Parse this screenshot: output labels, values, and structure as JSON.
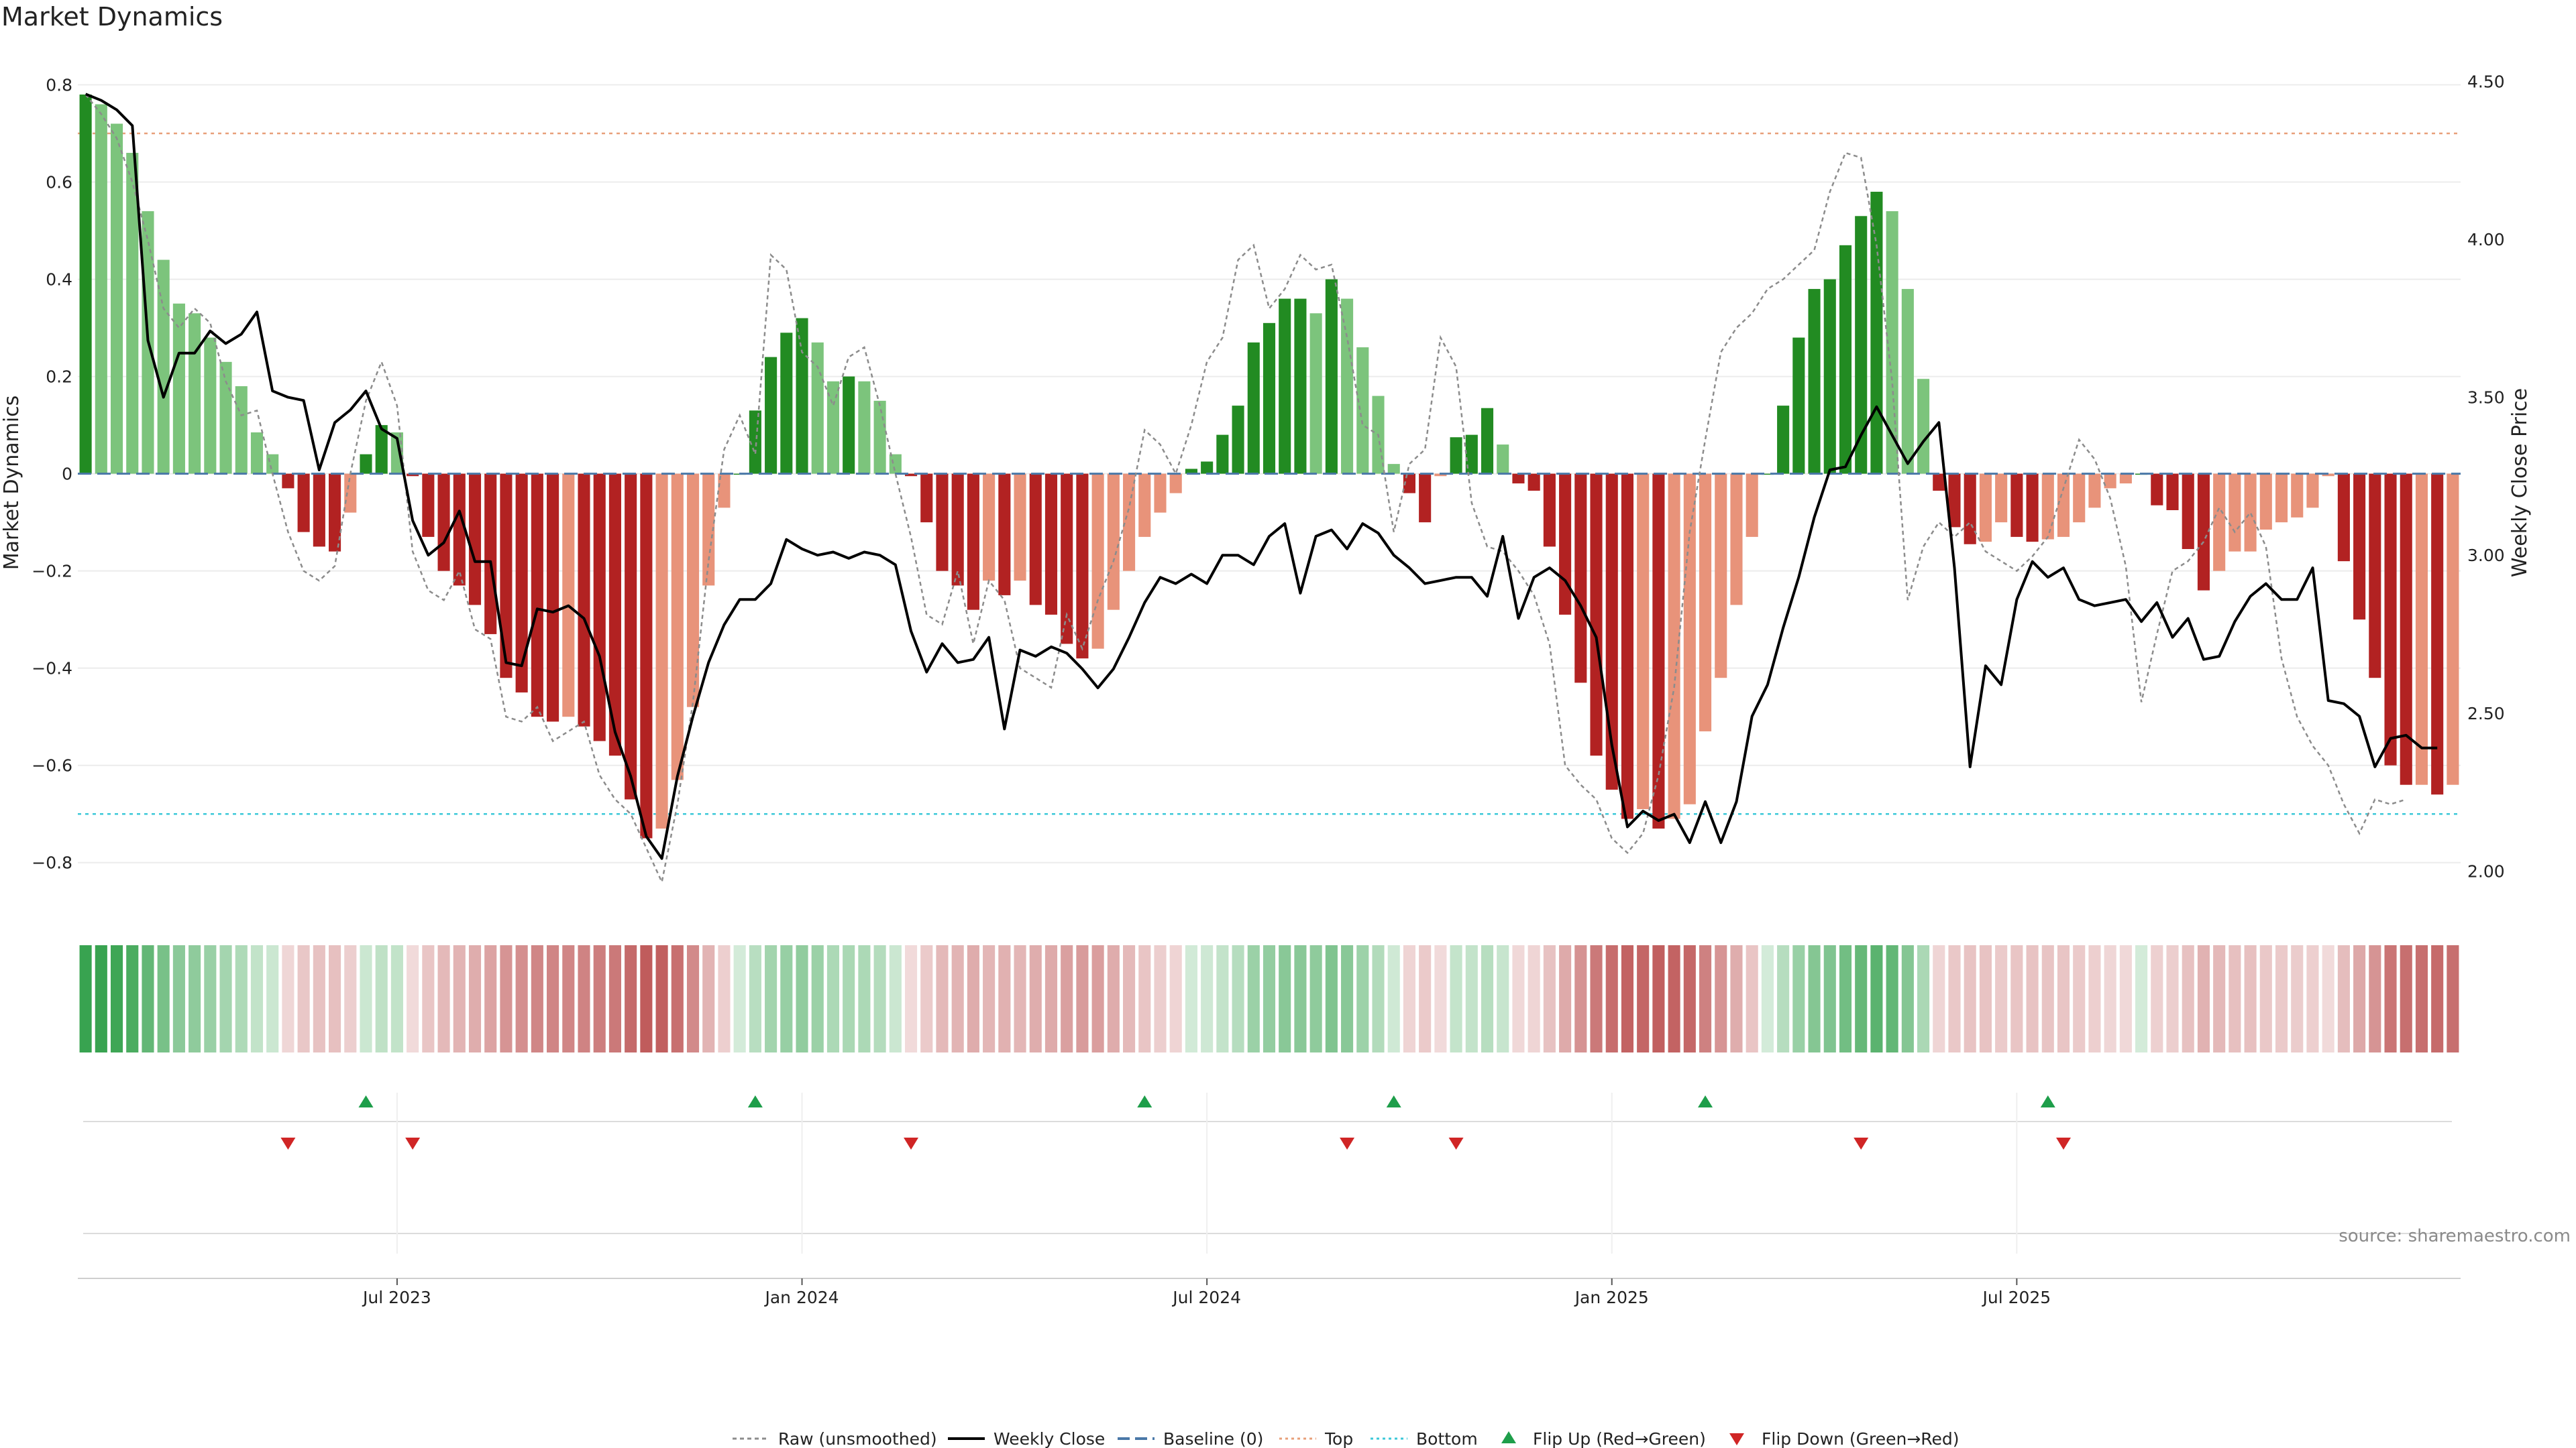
{
  "chart_data": {
    "type": "bar+line",
    "title": "Market Dynamics",
    "ylabel_left": "Market Dynamics",
    "ylabel_right": "Weekly Close Price",
    "ylim_left": [
      -0.85,
      0.82
    ],
    "yticks_left": [
      -0.8,
      -0.6,
      -0.4,
      -0.2,
      0,
      0.2,
      0.4,
      0.6,
      0.8
    ],
    "ytick_labels_left": [
      "−0.8",
      "−0.6",
      "−0.4",
      "−0.2",
      "0",
      "0.2",
      "0.4",
      "0.6",
      "0.8"
    ],
    "ylim_right": [
      1.95,
      4.52
    ],
    "yticks_right": [
      2.0,
      2.5,
      3.0,
      3.5,
      4.0,
      4.5
    ],
    "ytick_labels_right": [
      "2.00",
      "2.50",
      "3.00",
      "3.50",
      "4.00",
      "4.50"
    ],
    "xtick_labels": [
      "Jul 2023",
      "Jan 2024",
      "Jul 2024",
      "Jan 2025",
      "Jul 2025"
    ],
    "xtick_weeks": [
      20.5,
      46.5,
      72.5,
      98.5,
      124.5
    ],
    "top_level": 0.7,
    "bottom_level": -0.7,
    "baseline": 0,
    "momentum": [
      0.78,
      0.76,
      0.72,
      0.66,
      0.54,
      0.44,
      0.35,
      0.33,
      0.28,
      0.23,
      0.18,
      0.085,
      0.04,
      -0.03,
      -0.12,
      -0.15,
      -0.16,
      -0.08,
      0.04,
      0.1,
      0.085,
      -0.005,
      -0.13,
      -0.2,
      -0.23,
      -0.27,
      -0.33,
      -0.42,
      -0.45,
      -0.5,
      -0.51,
      -0.5,
      -0.52,
      -0.55,
      -0.58,
      -0.67,
      -0.75,
      -0.73,
      -0.63,
      -0.48,
      -0.23,
      -0.07,
      0.0,
      0.13,
      0.24,
      0.29,
      0.32,
      0.27,
      0.19,
      0.2,
      0.19,
      0.15,
      0.04,
      -0.005,
      -0.1,
      -0.2,
      -0.23,
      -0.28,
      -0.22,
      -0.25,
      -0.22,
      -0.27,
      -0.29,
      -0.35,
      -0.38,
      -0.36,
      -0.28,
      -0.2,
      -0.13,
      -0.08,
      -0.04,
      0.01,
      0.025,
      0.08,
      0.14,
      0.27,
      0.31,
      0.36,
      0.36,
      0.33,
      0.4,
      0.36,
      0.26,
      0.16,
      0.02,
      -0.04,
      -0.1,
      -0.005,
      0.075,
      0.08,
      0.135,
      0.06,
      -0.02,
      -0.035,
      -0.15,
      -0.29,
      -0.43,
      -0.58,
      -0.65,
      -0.71,
      -0.69,
      -0.73,
      -0.71,
      -0.68,
      -0.53,
      -0.42,
      -0.27,
      -0.13,
      0.0,
      0.14,
      0.28,
      0.38,
      0.4,
      0.47,
      0.53,
      0.58,
      0.54,
      0.38,
      0.195,
      -0.035,
      -0.11,
      -0.145,
      -0.14,
      -0.1,
      -0.13,
      -0.14,
      -0.135,
      -0.13,
      -0.1,
      -0.07,
      -0.03,
      -0.02,
      0.0,
      -0.065,
      -0.075,
      -0.155,
      -0.24,
      -0.2,
      -0.16,
      -0.16,
      -0.115,
      -0.1,
      -0.09,
      -0.07,
      -0.005,
      -0.18,
      -0.3,
      -0.42,
      -0.6,
      -0.64,
      -0.64,
      -0.66,
      -0.64
    ],
    "raw": [
      0.78,
      0.74,
      0.69,
      0.6,
      0.48,
      0.34,
      0.3,
      0.34,
      0.31,
      0.19,
      0.12,
      0.13,
      0.0,
      -0.12,
      -0.2,
      -0.22,
      -0.19,
      0.0,
      0.15,
      0.23,
      0.14,
      -0.16,
      -0.24,
      -0.26,
      -0.2,
      -0.32,
      -0.34,
      -0.5,
      -0.51,
      -0.48,
      -0.55,
      -0.53,
      -0.51,
      -0.62,
      -0.67,
      -0.7,
      -0.77,
      -0.84,
      -0.68,
      -0.47,
      -0.18,
      0.05,
      0.12,
      0.04,
      0.45,
      0.42,
      0.25,
      0.22,
      0.14,
      0.24,
      0.26,
      0.14,
      0.0,
      -0.13,
      -0.29,
      -0.31,
      -0.2,
      -0.35,
      -0.22,
      -0.26,
      -0.4,
      -0.42,
      -0.44,
      -0.29,
      -0.36,
      -0.26,
      -0.18,
      -0.07,
      0.09,
      0.06,
      0.0,
      0.1,
      0.23,
      0.28,
      0.44,
      0.47,
      0.34,
      0.38,
      0.45,
      0.42,
      0.43,
      0.28,
      0.1,
      0.08,
      -0.12,
      0.02,
      0.05,
      0.28,
      0.22,
      -0.06,
      -0.15,
      -0.16,
      -0.2,
      -0.25,
      -0.35,
      -0.6,
      -0.64,
      -0.67,
      -0.75,
      -0.78,
      -0.74,
      -0.62,
      -0.44,
      -0.12,
      0.07,
      0.25,
      0.3,
      0.33,
      0.38,
      0.4,
      0.43,
      0.46,
      0.58,
      0.66,
      0.65,
      0.47,
      0.19,
      -0.26,
      -0.15,
      -0.1,
      -0.13,
      -0.1,
      -0.16,
      -0.18,
      -0.2,
      -0.17,
      -0.13,
      -0.03,
      0.07,
      0.03,
      -0.05,
      -0.19,
      -0.47,
      -0.33,
      -0.2,
      -0.18,
      -0.14,
      -0.07,
      -0.12,
      -0.08,
      -0.15,
      -0.38,
      -0.5,
      -0.56,
      -0.6,
      -0.68,
      -0.74,
      -0.67,
      -0.68,
      -0.67
    ],
    "price": [
      4.46,
      4.44,
      4.41,
      4.36,
      3.68,
      3.5,
      3.64,
      3.64,
      3.71,
      3.67,
      3.7,
      3.77,
      3.52,
      3.5,
      3.49,
      3.27,
      3.42,
      3.46,
      3.52,
      3.4,
      3.37,
      3.11,
      3.0,
      3.04,
      3.14,
      2.98,
      2.98,
      2.66,
      2.65,
      2.83,
      2.82,
      2.84,
      2.8,
      2.68,
      2.44,
      2.3,
      2.11,
      2.04,
      2.3,
      2.49,
      2.66,
      2.78,
      2.86,
      2.86,
      2.91,
      3.05,
      3.02,
      3.0,
      3.01,
      2.99,
      3.01,
      3.0,
      2.97,
      2.76,
      2.63,
      2.72,
      2.66,
      2.67,
      2.74,
      2.45,
      2.7,
      2.68,
      2.71,
      2.69,
      2.64,
      2.58,
      2.64,
      2.74,
      2.85,
      2.93,
      2.91,
      2.94,
      2.91,
      3.0,
      3.0,
      2.97,
      3.06,
      3.1,
      2.88,
      3.06,
      3.08,
      3.02,
      3.1,
      3.07,
      3.0,
      2.96,
      2.91,
      2.92,
      2.93,
      2.93,
      2.87,
      3.06,
      2.8,
      2.93,
      2.96,
      2.92,
      2.84,
      2.74,
      2.4,
      2.14,
      2.19,
      2.16,
      2.18,
      2.09,
      2.22,
      2.09,
      2.22,
      2.49,
      2.59,
      2.77,
      2.93,
      3.12,
      3.27,
      3.28,
      3.38,
      3.47,
      3.38,
      3.29,
      3.36,
      3.42,
      2.96,
      2.33,
      2.65,
      2.59,
      2.86,
      2.98,
      2.93,
      2.96,
      2.86,
      2.84,
      2.85,
      2.86,
      2.79,
      2.85,
      2.74,
      2.8,
      2.67,
      2.68,
      2.79,
      2.87,
      2.91,
      2.86,
      2.86,
      2.96,
      2.54,
      2.53,
      2.49,
      2.33,
      2.42,
      2.43,
      2.39,
      2.39
    ],
    "heat_strip": "weekly color band mirroring momentum sign and magnitude",
    "flips_up_weeks": [
      18,
      43,
      68,
      84,
      104,
      126
    ],
    "flips_down_weeks": [
      13,
      21,
      53,
      81,
      88,
      114,
      127
    ],
    "legend_position": "bottom-center"
  },
  "legend": {
    "raw": "Raw (unsmoothed)",
    "close": "Weekly Close",
    "baseline": "Baseline (0)",
    "top": "Top",
    "bottom": "Bottom",
    "flip_up": "Flip Up (Red→Green)",
    "flip_down": "Flip Down (Green→Red)"
  },
  "source": "source: sharemaestro.com",
  "colors": {
    "strong_green": "#228B22",
    "light_green": "#7CC47C",
    "strong_red": "#B22222",
    "light_red": "#E8937A",
    "close_line": "#000000",
    "raw_line": "#8c8c8c",
    "baseline": "#4A78A8",
    "top": "#E8A07A",
    "bottom": "#3CC8D8",
    "flip_up": "#1E9E4A",
    "flip_down": "#D02525"
  }
}
